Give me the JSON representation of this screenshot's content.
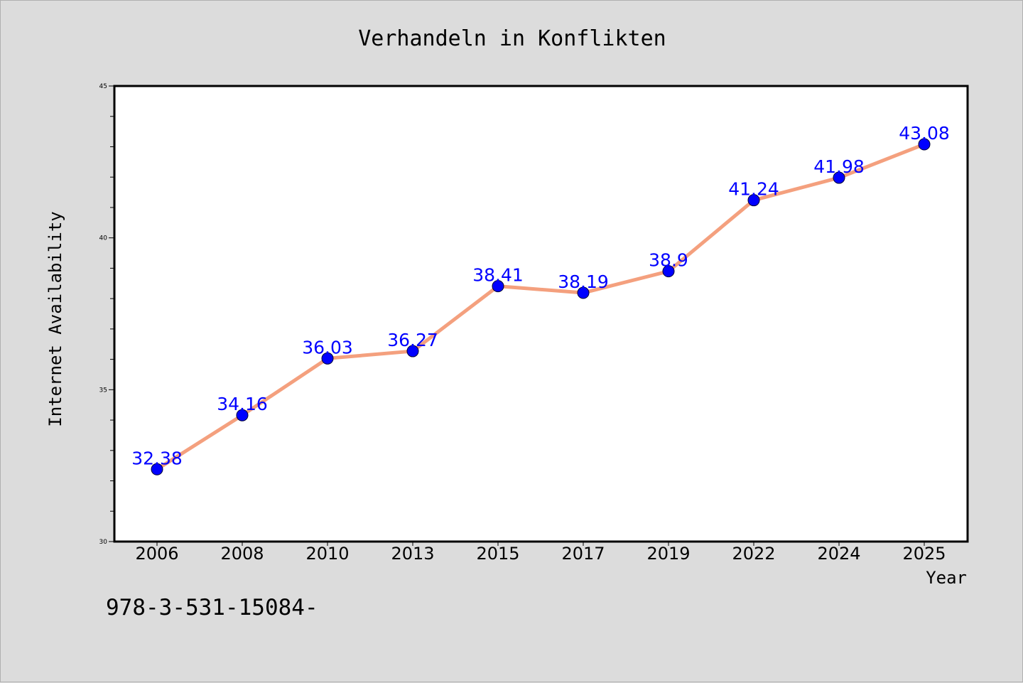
{
  "chart_data": {
    "type": "line",
    "title": "Verhandeln in Konflikten",
    "xlabel": "Year",
    "ylabel": "Internet Availability",
    "categories": [
      "2006",
      "2008",
      "2010",
      "2013",
      "2015",
      "2017",
      "2019",
      "2022",
      "2024",
      "2025"
    ],
    "series": [
      {
        "values": [
          32.38,
          34.16,
          36.03,
          36.27,
          38.41,
          38.19,
          38.9,
          41.24,
          41.98,
          43.08
        ],
        "labels": [
          "32.38",
          "34.16",
          "36.03",
          "36.27",
          "38.41",
          "38.19",
          "38.9",
          "41.24",
          "41.98",
          "43.08"
        ]
      }
    ],
    "ylim": [
      30,
      45
    ],
    "yticks": [
      "30",
      "35",
      "40",
      "45"
    ],
    "grid": false,
    "legend": "none",
    "colors": {
      "line": "#f4a07e",
      "marker": "#0000ff",
      "data_label": "#0000ff",
      "background": "#dcdcdc",
      "plot_area": "#ffffff"
    }
  },
  "footer_text": "978-3-531-15084-"
}
